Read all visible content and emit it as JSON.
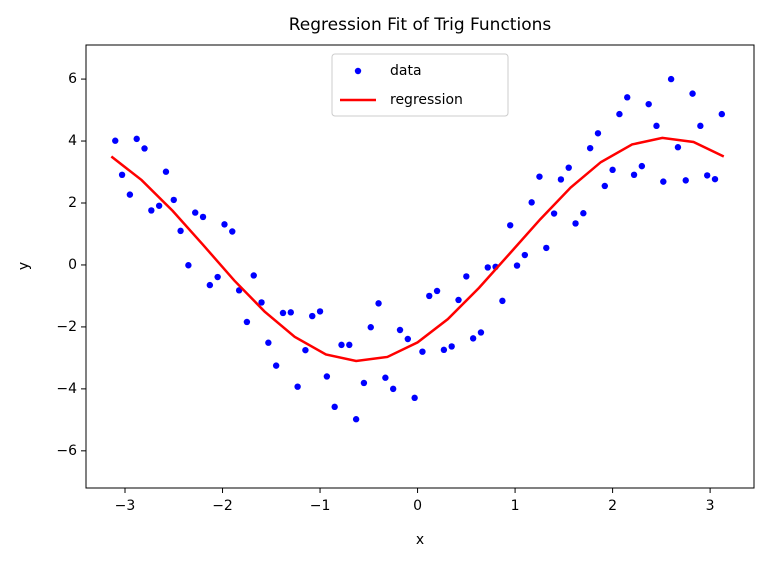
{
  "chart_data": {
    "type": "scatter",
    "title": "Regression Fit of Trig Functions",
    "x_label": "x",
    "y_label": "y",
    "xlim": [
      -3.4,
      3.45
    ],
    "ylim": [
      -7.2,
      7.1
    ],
    "xticks": [
      {
        "value": -3,
        "label": "−3"
      },
      {
        "value": -2,
        "label": "−2"
      },
      {
        "value": -1,
        "label": "−1"
      },
      0,
      1,
      2,
      3
    ],
    "yticks": [
      {
        "value": -6,
        "label": "−6"
      },
      {
        "value": -4,
        "label": "−4"
      },
      {
        "value": -2,
        "label": "−2"
      },
      0,
      2,
      4,
      6
    ],
    "legend": "upper center",
    "series": [
      {
        "name": "data",
        "type": "scatter",
        "color": "#0000ff",
        "x": [
          -3.1,
          -2.95,
          -2.8,
          -2.65,
          -2.5,
          -2.35,
          -2.2,
          -2.05,
          -1.9,
          -1.75,
          -1.6,
          -1.45,
          -1.3,
          -1.15,
          -1.0,
          -0.85,
          -0.7,
          -0.55,
          -0.4,
          -0.25,
          -0.1,
          0.05,
          0.2,
          0.35,
          0.5,
          0.65,
          0.8,
          0.95,
          1.1,
          1.25,
          1.4,
          1.55,
          1.7,
          1.85,
          2.0,
          2.15,
          2.3,
          2.45,
          2.6,
          2.75,
          2.9,
          3.05,
          -3.03,
          -2.88,
          -2.73,
          -2.58,
          -2.43,
          -2.28,
          -2.13,
          -1.98,
          -1.83,
          -1.68,
          -1.53,
          -1.38,
          -1.23,
          -1.08,
          -0.93,
          -0.78,
          -0.63,
          -0.48,
          -0.33,
          -0.18,
          -0.03,
          0.12,
          0.27,
          0.42,
          0.57,
          0.72,
          0.87,
          1.02,
          1.17,
          1.32,
          1.47,
          1.62,
          1.77,
          1.92,
          2.07,
          2.22,
          2.37,
          2.52,
          2.67,
          2.82,
          2.97,
          3.12
        ],
        "values": [
          4.01,
          2.27,
          3.76,
          1.91,
          2.1,
          -0.01,
          1.55,
          -0.39,
          1.08,
          -1.84,
          -1.21,
          -3.25,
          -1.53,
          -2.75,
          -1.5,
          -4.58,
          -2.58,
          -3.81,
          -1.24,
          -4.0,
          -2.39,
          -2.8,
          -0.84,
          -2.63,
          -0.37,
          -2.18,
          -0.06,
          1.28,
          0.32,
          2.85,
          1.66,
          3.14,
          1.67,
          4.25,
          3.07,
          5.41,
          3.19,
          4.49,
          6.0,
          2.73,
          4.49,
          2.77,
          2.91,
          4.07,
          1.76,
          3.01,
          1.1,
          1.69,
          -0.65,
          1.31,
          -0.82,
          -0.34,
          -2.51,
          -1.55,
          -3.93,
          -1.65,
          -3.6,
          -2.58,
          -4.98,
          -2.01,
          -3.64,
          -2.1,
          -4.29,
          -1.0,
          -2.74,
          -1.13,
          -2.37,
          -0.08,
          -1.16,
          -0.02,
          2.02,
          0.55,
          2.76,
          1.34,
          3.77,
          2.55,
          4.87,
          2.91,
          5.19,
          2.69,
          3.8,
          5.53,
          2.89,
          4.87
        ]
      },
      {
        "name": "regression",
        "type": "line",
        "color": "#ff0000",
        "x": [
          -3.14,
          -2.83,
          -2.51,
          -2.2,
          -1.88,
          -1.57,
          -1.26,
          -0.94,
          -0.63,
          -0.31,
          0,
          0.31,
          0.63,
          0.94,
          1.26,
          1.57,
          1.88,
          2.2,
          2.51,
          2.83,
          3.14
        ],
        "values": [
          3.5,
          2.74,
          1.74,
          0.65,
          -0.5,
          -1.5,
          -2.32,
          -2.89,
          -3.1,
          -2.97,
          -2.5,
          -1.75,
          -0.74,
          0.35,
          1.48,
          2.5,
          3.32,
          3.89,
          4.1,
          3.97,
          3.5
        ]
      }
    ]
  }
}
